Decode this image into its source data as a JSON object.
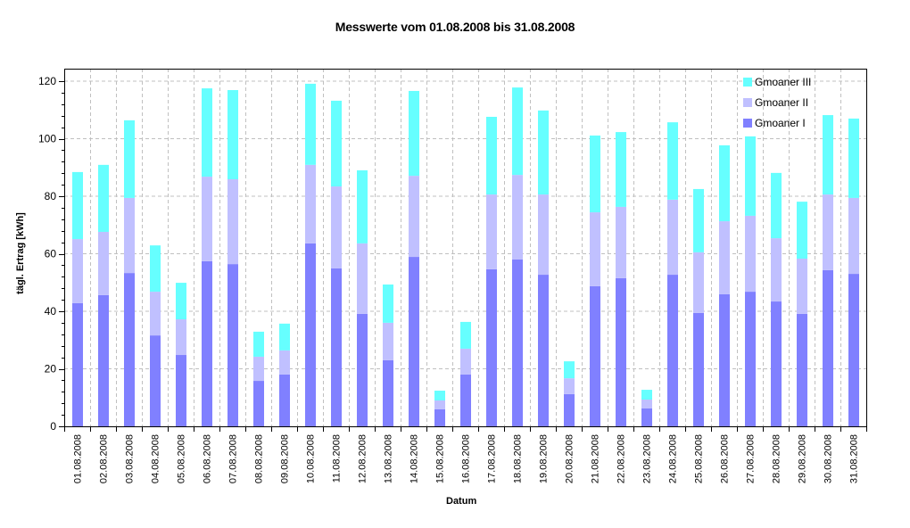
{
  "chart_data": {
    "type": "bar",
    "stacked": true,
    "title": "Messwerte vom 01.08.2008 bis 31.08.2008",
    "xlabel": "Datum",
    "ylabel": "tägl. Ertrag [kWh]",
    "ylim": [
      0,
      120
    ],
    "yticks": [
      0,
      20,
      40,
      60,
      80,
      100,
      120
    ],
    "grid": true,
    "legend_position": "top-right",
    "categories": [
      "01.08.2008",
      "02.08.2008",
      "03.08.2008",
      "04.08.2008",
      "05.08.2008",
      "06.08.2008",
      "07.08.2008",
      "08.08.2008",
      "09.08.2008",
      "10.08.2008",
      "11.08.2008",
      "12.08.2008",
      "13.08.2008",
      "14.08.2008",
      "15.08.2008",
      "16.08.2008",
      "17.08.2008",
      "18.08.2008",
      "19.08.2008",
      "20.08.2008",
      "21.08.2008",
      "22.08.2008",
      "23.08.2008",
      "24.08.2008",
      "25.08.2008",
      "26.08.2008",
      "27.08.2008",
      "28.08.2008",
      "29.08.2008",
      "30.08.2008",
      "31.08.2008"
    ],
    "series": [
      {
        "name": "Gmoaner I",
        "color": "#8080ff",
        "values": [
          42.8,
          45.6,
          53.3,
          31.6,
          24.8,
          57.4,
          56.4,
          15.8,
          18.0,
          63.6,
          54.9,
          39.1,
          23.0,
          58.9,
          5.9,
          18.0,
          54.6,
          58.0,
          52.7,
          11.2,
          48.7,
          51.5,
          6.2,
          52.7,
          39.4,
          45.9,
          46.8,
          43.4,
          39.1,
          54.3,
          53.0
        ]
      },
      {
        "name": "Gmoaner II",
        "color": "#c0c0ff",
        "values": [
          22.3,
          22.0,
          26.1,
          15.2,
          12.4,
          29.4,
          29.5,
          8.4,
          8.4,
          27.3,
          28.5,
          24.5,
          13.0,
          28.2,
          3.1,
          9.0,
          26.0,
          29.4,
          27.9,
          5.5,
          25.7,
          24.8,
          3.1,
          26.1,
          21.1,
          25.4,
          26.4,
          22.0,
          19.2,
          26.3,
          26.4
        ]
      },
      {
        "name": "Gmoaner III",
        "color": "#66ffff",
        "values": [
          23.3,
          23.3,
          27.0,
          16.1,
          12.7,
          30.7,
          31.0,
          8.7,
          9.3,
          28.2,
          29.8,
          25.4,
          13.3,
          29.5,
          3.4,
          9.3,
          27.0,
          30.4,
          29.2,
          5.9,
          26.7,
          26.0,
          3.4,
          26.9,
          22.0,
          26.4,
          27.6,
          22.7,
          19.8,
          27.6,
          27.6
        ]
      }
    ]
  }
}
